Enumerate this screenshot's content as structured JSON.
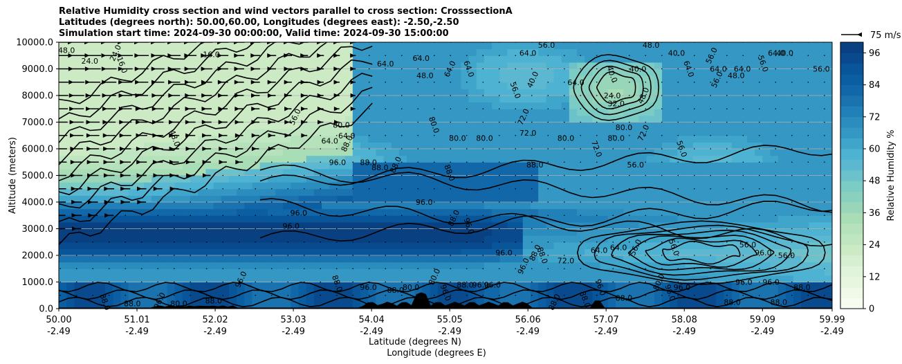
{
  "chart_data": {
    "type": "heatmap",
    "title_lines": [
      "Relative Humidity cross section and wind vectors parallel to cross section: CrosssectionA",
      "Latitudes (degrees north): 50.00,60.00, Longitudes (degrees east): -2.50,-2.50",
      "Simulation start time: 2024-09-30 00:00:00, Valid time: 2024-09-30 15:00:00"
    ],
    "ylabel": "Altitude (meters)",
    "xlabel_lines": [
      "Latitude (degrees N)",
      "Longitude (degrees E)"
    ],
    "ylim": [
      0,
      10000
    ],
    "xlim": [
      50.0,
      59.99
    ],
    "y_ticks": [
      {
        "value": 0,
        "label": "0.0"
      },
      {
        "value": 1000,
        "label": "1000.0"
      },
      {
        "value": 2000,
        "label": "2000.0"
      },
      {
        "value": 3000,
        "label": "3000.0"
      },
      {
        "value": 4000,
        "label": "4000.0"
      },
      {
        "value": 5000,
        "label": "5000.0"
      },
      {
        "value": 6000,
        "label": "6000.0"
      },
      {
        "value": 7000,
        "label": "7000.0"
      },
      {
        "value": 8000,
        "label": "8000.0"
      },
      {
        "value": 9000,
        "label": "9000.0"
      },
      {
        "value": 10000,
        "label": "10000.0"
      }
    ],
    "x_ticks": [
      {
        "value": 50.0,
        "lat": "50.00",
        "lon": "-2.49"
      },
      {
        "value": 51.01,
        "lat": "51.01",
        "lon": "-2.49"
      },
      {
        "value": 52.02,
        "lat": "52.02",
        "lon": "-2.49"
      },
      {
        "value": 53.03,
        "lat": "53.03",
        "lon": "-2.49"
      },
      {
        "value": 54.04,
        "lat": "54.04",
        "lon": "-2.49"
      },
      {
        "value": 55.05,
        "lat": "55.05",
        "lon": "-2.49"
      },
      {
        "value": 56.06,
        "lat": "56.06",
        "lon": "-2.49"
      },
      {
        "value": 57.07,
        "lat": "57.07",
        "lon": "-2.49"
      },
      {
        "value": 58.08,
        "lat": "58.08",
        "lon": "-2.49"
      },
      {
        "value": 59.09,
        "lat": "59.09",
        "lon": "-2.49"
      },
      {
        "value": 59.99,
        "lat": "59.99",
        "lon": "-2.49"
      }
    ],
    "grid": "horizontal",
    "colorbar": {
      "label": "Relative Humidity %",
      "ticks": [
        0,
        12,
        24,
        36,
        48,
        60,
        72,
        84,
        96
      ],
      "levels": [
        0,
        4,
        8,
        12,
        16,
        20,
        24,
        28,
        32,
        36,
        40,
        44,
        48,
        52,
        56,
        60,
        64,
        68,
        72,
        76,
        80,
        84,
        88,
        92,
        96,
        100
      ],
      "colors": [
        "#f7fcf0",
        "#f0f9e8",
        "#e7f6df",
        "#e0f3db",
        "#d6efd0",
        "#ccebc5",
        "#bfe6c0",
        "#b5e2bb",
        "#a8ddb5",
        "#99d6b9",
        "#8ad0be",
        "#7bccc4",
        "#6bc2ca",
        "#5cb8d1",
        "#4eb3d3",
        "#3fa5cb",
        "#3597c3",
        "#2b8cbe",
        "#2180b8",
        "#1a73ae",
        "#1167a8",
        "#0a5ea1",
        "#08559a",
        "#084a8d",
        "#084081"
      ]
    },
    "wind_key": {
      "label": "75 m/s",
      "magnitude": 75
    },
    "contour_labels": [
      {
        "text": "48.0",
        "lat": 50.1,
        "alt": 9700
      },
      {
        "text": "24.0",
        "lat": 50.4,
        "alt": 9300
      },
      {
        "text": "24.0",
        "lat": 50.73,
        "alt": 9600
      },
      {
        "text": "16.0",
        "lat": 50.82,
        "alt": 9150
      },
      {
        "text": "16.0",
        "lat": 51.97,
        "alt": 9550
      },
      {
        "text": "64.0",
        "lat": 54.22,
        "alt": 9200
      },
      {
        "text": "64.0",
        "lat": 54.68,
        "alt": 9400
      },
      {
        "text": "64.0",
        "lat": 55.05,
        "alt": 9000
      },
      {
        "text": "64.0",
        "lat": 55.3,
        "alt": 9000
      },
      {
        "text": "48.0",
        "lat": 54.73,
        "alt": 8750
      },
      {
        "text": "56.0",
        "lat": 56.3,
        "alt": 9900
      },
      {
        "text": "64.0",
        "lat": 56.06,
        "alt": 9600
      },
      {
        "text": "40.0",
        "lat": 56.12,
        "alt": 8600
      },
      {
        "text": "56.0",
        "lat": 55.9,
        "alt": 8200
      },
      {
        "text": "64.0",
        "lat": 56.68,
        "alt": 8500
      },
      {
        "text": "48.0",
        "lat": 57.65,
        "alt": 9900
      },
      {
        "text": "40.0",
        "lat": 57.98,
        "alt": 9600
      },
      {
        "text": "56.0",
        "lat": 58.43,
        "alt": 9500
      },
      {
        "text": "64.0",
        "lat": 58.14,
        "alt": 9000
      },
      {
        "text": "64.0",
        "lat": 58.52,
        "alt": 9000
      },
      {
        "text": "64.0",
        "lat": 58.83,
        "alt": 9000
      },
      {
        "text": "48.0",
        "lat": 58.75,
        "alt": 8750
      },
      {
        "text": "56.0",
        "lat": 58.5,
        "alt": 8600
      },
      {
        "text": "40.0",
        "lat": 57.15,
        "alt": 8800
      },
      {
        "text": "24.0",
        "lat": 57.15,
        "alt": 8000
      },
      {
        "text": "32.0",
        "lat": 57.2,
        "alt": 7700
      },
      {
        "text": "40.0",
        "lat": 57.48,
        "alt": 9000
      },
      {
        "text": "48.0",
        "lat": 57.55,
        "alt": 8000
      },
      {
        "text": "56.0",
        "lat": 59.1,
        "alt": 9200
      },
      {
        "text": "64.0",
        "lat": 59.27,
        "alt": 9600
      },
      {
        "text": "40.0",
        "lat": 59.38,
        "alt": 9600
      },
      {
        "text": "56.0",
        "lat": 59.85,
        "alt": 9000
      },
      {
        "text": "56.0",
        "lat": 53.05,
        "alt": 7200
      },
      {
        "text": "48.0",
        "lat": 51.5,
        "alt": 6400
      },
      {
        "text": "64.0",
        "lat": 53.5,
        "alt": 6300
      },
      {
        "text": "80.0",
        "lat": 53.65,
        "alt": 6900
      },
      {
        "text": "64.0",
        "lat": 53.72,
        "alt": 6500
      },
      {
        "text": "88.0",
        "lat": 53.72,
        "alt": 6200
      },
      {
        "text": "80.0",
        "lat": 54.85,
        "alt": 6900
      },
      {
        "text": "80.0",
        "lat": 55.15,
        "alt": 6400
      },
      {
        "text": "80.0",
        "lat": 55.5,
        "alt": 6400
      },
      {
        "text": "72.0",
        "lat": 56.06,
        "alt": 6600
      },
      {
        "text": "72.0",
        "lat": 56.0,
        "alt": 7200
      },
      {
        "text": "72.0",
        "lat": 56.95,
        "alt": 6000
      },
      {
        "text": "80.0",
        "lat": 56.55,
        "alt": 6400
      },
      {
        "text": "80.0",
        "lat": 57.2,
        "alt": 6400
      },
      {
        "text": "80.0",
        "lat": 57.3,
        "alt": 6800
      },
      {
        "text": "72.0",
        "lat": 57.55,
        "alt": 6600
      },
      {
        "text": "56.0",
        "lat": 58.05,
        "alt": 6000
      },
      {
        "text": "56.0",
        "lat": 57.45,
        "alt": 5400
      },
      {
        "text": "88.0",
        "lat": 54.0,
        "alt": 5500
      },
      {
        "text": "88.0",
        "lat": 54.15,
        "alt": 5300
      },
      {
        "text": "88.0",
        "lat": 54.35,
        "alt": 5400
      },
      {
        "text": "88.0",
        "lat": 55.05,
        "alt": 5100
      },
      {
        "text": "88.0",
        "lat": 56.15,
        "alt": 5400
      },
      {
        "text": "96.0",
        "lat": 53.6,
        "alt": 5500
      },
      {
        "text": "96.0",
        "lat": 54.72,
        "alt": 4000
      },
      {
        "text": "88.0",
        "lat": 55.1,
        "alt": 3400
      },
      {
        "text": "96.0",
        "lat": 55.3,
        "alt": 3100
      },
      {
        "text": "96.0",
        "lat": 53.1,
        "alt": 3600
      },
      {
        "text": "96.0",
        "lat": 53.0,
        "alt": 3100
      },
      {
        "text": "96.0",
        "lat": 55.75,
        "alt": 2100
      },
      {
        "text": "88.0",
        "lat": 56.15,
        "alt": 2100
      },
      {
        "text": "88.0",
        "lat": 56.25,
        "alt": 2000
      },
      {
        "text": "72.0",
        "lat": 56.55,
        "alt": 1800
      },
      {
        "text": "64.0",
        "lat": 56.98,
        "alt": 2200
      },
      {
        "text": "64.0",
        "lat": 57.23,
        "alt": 2300
      },
      {
        "text": "56.0",
        "lat": 57.45,
        "alt": 2300
      },
      {
        "text": "56.0",
        "lat": 57.95,
        "alt": 2300
      },
      {
        "text": "56.0",
        "lat": 58.9,
        "alt": 2400
      },
      {
        "text": "56.0",
        "lat": 59.4,
        "alt": 2000
      },
      {
        "text": "96.0",
        "lat": 59.1,
        "alt": 2100
      },
      {
        "text": "80.0",
        "lat": 57.75,
        "alt": 1000
      },
      {
        "text": "96.0",
        "lat": 57.9,
        "alt": 600
      },
      {
        "text": "96.0",
        "lat": 58.85,
        "alt": 1000
      },
      {
        "text": "96.0",
        "lat": 59.2,
        "alt": 1000
      },
      {
        "text": "88.0",
        "lat": 59.6,
        "alt": 800
      },
      {
        "text": "96.0",
        "lat": 52.35,
        "alt": 1100
      },
      {
        "text": "88.0",
        "lat": 53.6,
        "alt": 950
      },
      {
        "text": "96.0",
        "lat": 54.0,
        "alt": 800
      },
      {
        "text": "88.0",
        "lat": 54.35,
        "alt": 700
      },
      {
        "text": "80.0",
        "lat": 54.55,
        "alt": 800
      },
      {
        "text": "80.0",
        "lat": 54.85,
        "alt": 1200
      },
      {
        "text": "96.0",
        "lat": 55.0,
        "alt": 600
      },
      {
        "text": "96.0",
        "lat": 55.45,
        "alt": 900
      },
      {
        "text": "96.0",
        "lat": 55.6,
        "alt": 900
      },
      {
        "text": "88.0",
        "lat": 55.25,
        "alt": 900
      },
      {
        "text": "96.0",
        "lat": 51.3,
        "alt": 300
      },
      {
        "text": "88.0",
        "lat": 50.6,
        "alt": 250
      },
      {
        "text": "88.0",
        "lat": 50.95,
        "alt": 200
      },
      {
        "text": "80.0",
        "lat": 51.55,
        "alt": 200
      },
      {
        "text": "88.0",
        "lat": 52.0,
        "alt": 300
      },
      {
        "text": "88.0",
        "lat": 56.4,
        "alt": 250
      },
      {
        "text": "88.0",
        "lat": 56.8,
        "alt": 350
      },
      {
        "text": "88.0",
        "lat": 57.3,
        "alt": 400
      },
      {
        "text": "88.0",
        "lat": 58.7,
        "alt": 250
      },
      {
        "text": "88.0",
        "lat": 59.3,
        "alt": 250
      },
      {
        "text": "96.0",
        "lat": 56.0,
        "alt": 1600
      },
      {
        "text": "96.0",
        "lat": 57.0,
        "alt": 800
      },
      {
        "text": "96.0",
        "lat": 58.05,
        "alt": 800
      }
    ]
  }
}
